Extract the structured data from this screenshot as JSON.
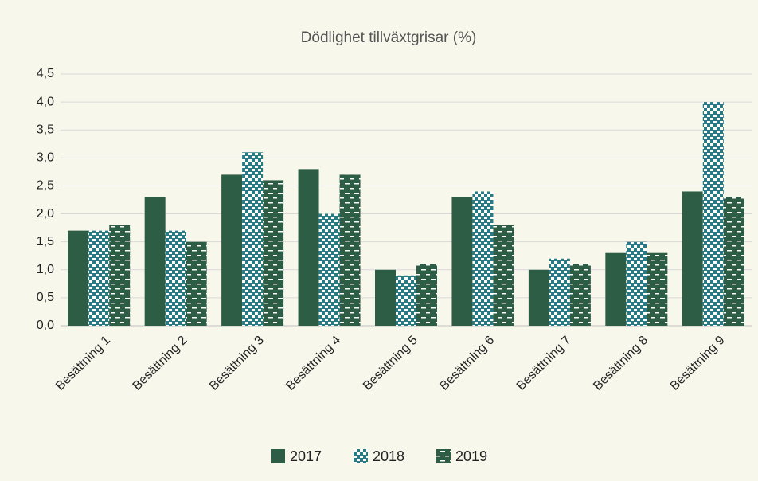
{
  "chart_data": {
    "type": "bar",
    "title": "Dödlighet tillväxtgrisar (%)",
    "categories": [
      "Besättning 1",
      "Besättning 2",
      "Besättning 3",
      "Besättning 4",
      "Besättning 5",
      "Besättning 6",
      "Besättning 7",
      "Besättning 8",
      "Besättning 9"
    ],
    "series": [
      {
        "name": "2017",
        "color": "#2d5e45",
        "pattern": "solid",
        "values": [
          1.7,
          2.3,
          2.7,
          2.8,
          1.0,
          2.3,
          1.0,
          1.3,
          2.4
        ]
      },
      {
        "name": "2018",
        "color": "#2d5e45",
        "pattern": "dots",
        "values": [
          1.7,
          1.7,
          3.1,
          2.0,
          0.9,
          2.4,
          1.2,
          1.5,
          4.0
        ]
      },
      {
        "name": "2019",
        "color": "#2d5e45",
        "pattern": "dashes",
        "values": [
          1.8,
          1.5,
          2.6,
          2.7,
          1.1,
          1.8,
          1.1,
          1.3,
          2.3
        ]
      }
    ],
    "ylim": [
      0,
      4.5
    ],
    "yticks": [
      {
        "value": 0,
        "label": "0,0"
      },
      {
        "value": 0.5,
        "label": "0,5"
      },
      {
        "value": 1,
        "label": "1,0"
      },
      {
        "value": 1.5,
        "label": "1,5"
      },
      {
        "value": 2,
        "label": "2,0"
      },
      {
        "value": 2.5,
        "label": "2,5"
      },
      {
        "value": 3,
        "label": "3,0"
      },
      {
        "value": 3.5,
        "label": "3,5"
      },
      {
        "value": 4,
        "label": "4,0"
      },
      {
        "value": 4.5,
        "label": "4,5"
      }
    ],
    "grid": true,
    "legend": "bottom"
  }
}
